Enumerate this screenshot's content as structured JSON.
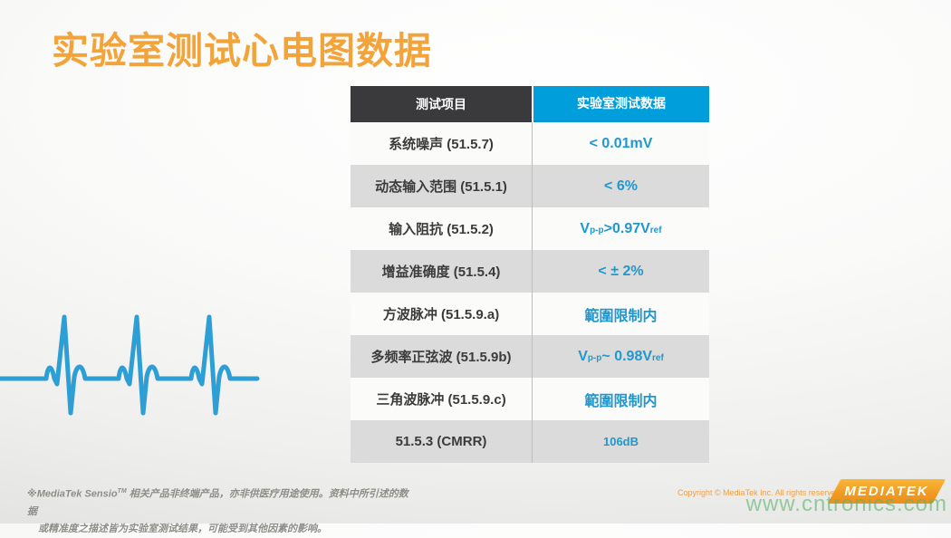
{
  "page": {
    "title": "实验室测试心电图数据"
  },
  "colors": {
    "title_orange": "#F2A43A",
    "header_dark": "#3A3A3C",
    "header_blue": "#009EDB",
    "value_blue": "#2098CE",
    "row_gray": "#DBDBDB",
    "logo_orange": "#F09A22",
    "watermark_green": "#5CB56E",
    "copyright_orange": "#F0A146"
  },
  "table": {
    "headers": [
      {
        "label": "测试项目"
      },
      {
        "label": "实验室测试数据"
      }
    ],
    "rows": [
      {
        "item": "系统噪声 (51.5.7)",
        "value": [
          {
            "t": "< 0.01mV"
          }
        ]
      },
      {
        "item": "动态输入范围 (51.5.1)",
        "value": [
          {
            "t": "< 6%"
          }
        ]
      },
      {
        "item": "输入阻抗 (51.5.2)",
        "value": [
          {
            "t": "V"
          },
          {
            "sub": "p-p"
          },
          {
            "t": " >0.97V"
          },
          {
            "sub": "ref"
          }
        ]
      },
      {
        "item": "增益准确度 (51.5.4)",
        "value": [
          {
            "t": "< ± 2%"
          }
        ]
      },
      {
        "item": "方波脉冲 (51.5.9.a)",
        "value": [
          {
            "t": "範圍限制内"
          }
        ]
      },
      {
        "item": "多频率正弦波 (51.5.9b)",
        "value": [
          {
            "t": "V"
          },
          {
            "sub": "p-p"
          },
          {
            "t": " ~ 0.98V"
          },
          {
            "sub": "ref"
          }
        ]
      },
      {
        "item": "三角波脉冲 (51.5.9.c)",
        "value": [
          {
            "t": "範圍限制内"
          }
        ]
      },
      {
        "item": "51.5.3 (CMRR)",
        "value": [
          {
            "t": "106dB"
          }
        ]
      }
    ]
  },
  "footer": {
    "disclaimer_line1_pre": "※MediaTek Sensio",
    "disclaimer_tm": "TM",
    "disclaimer_line1_post": " 相关产品非终端产品，亦非供医疗用途使用。资料中所引述的数据",
    "disclaimer_line2": "或精准度之描述皆为实验室测试结果，可能受到其他因素的影响。",
    "copyright": "Copyright © MediaTek Inc. All rights reserved",
    "logo_text": "MEDIATEK",
    "watermark": "www.cntronics.com"
  }
}
